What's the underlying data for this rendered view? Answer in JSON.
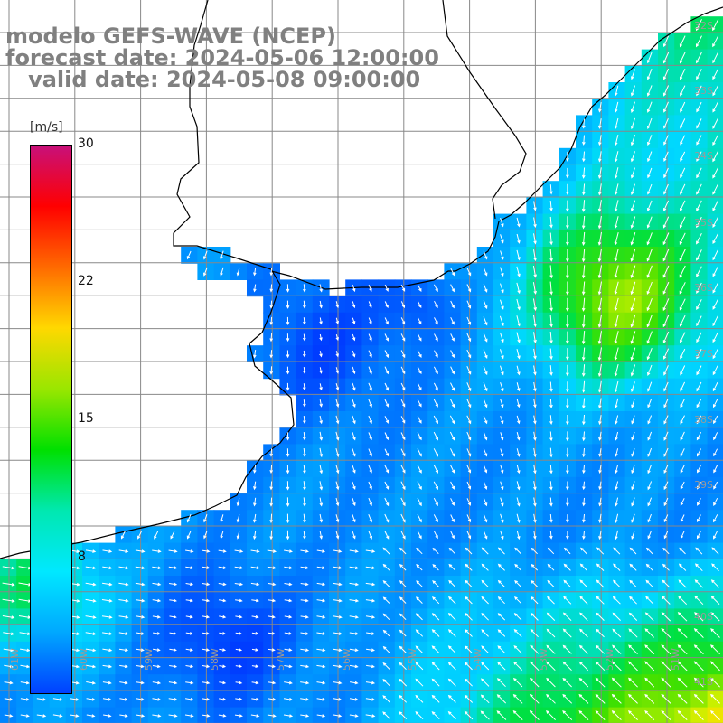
{
  "title": {
    "line1": "modelo GEFS-WAVE (NCEP)",
    "line2": "forecast date: 2024-05-06 12:00:00",
    "line3": "   valid date: 2024-05-08 09:00:00"
  },
  "colorbar": {
    "unit": "[m/s]",
    "ticks": [
      "30",
      "22",
      "15",
      "8"
    ],
    "colors": [
      "#c8107a",
      "#ff0000",
      "#ff6a00",
      "#ffd800",
      "#9ae600",
      "#00e000",
      "#00e8b0",
      "#00e8ff",
      "#00a8ff",
      "#0040ff"
    ]
  },
  "lat_labels": [
    "32S",
    "33S",
    "34S",
    "35S",
    "36S",
    "37S",
    "38S",
    "39S",
    "40S",
    "41S"
  ],
  "lon_labels": [
    "61W",
    "60W",
    "59W",
    "58W",
    "57W",
    "56W",
    "55W",
    "54W",
    "53W",
    "52W",
    "51W"
  ]
}
